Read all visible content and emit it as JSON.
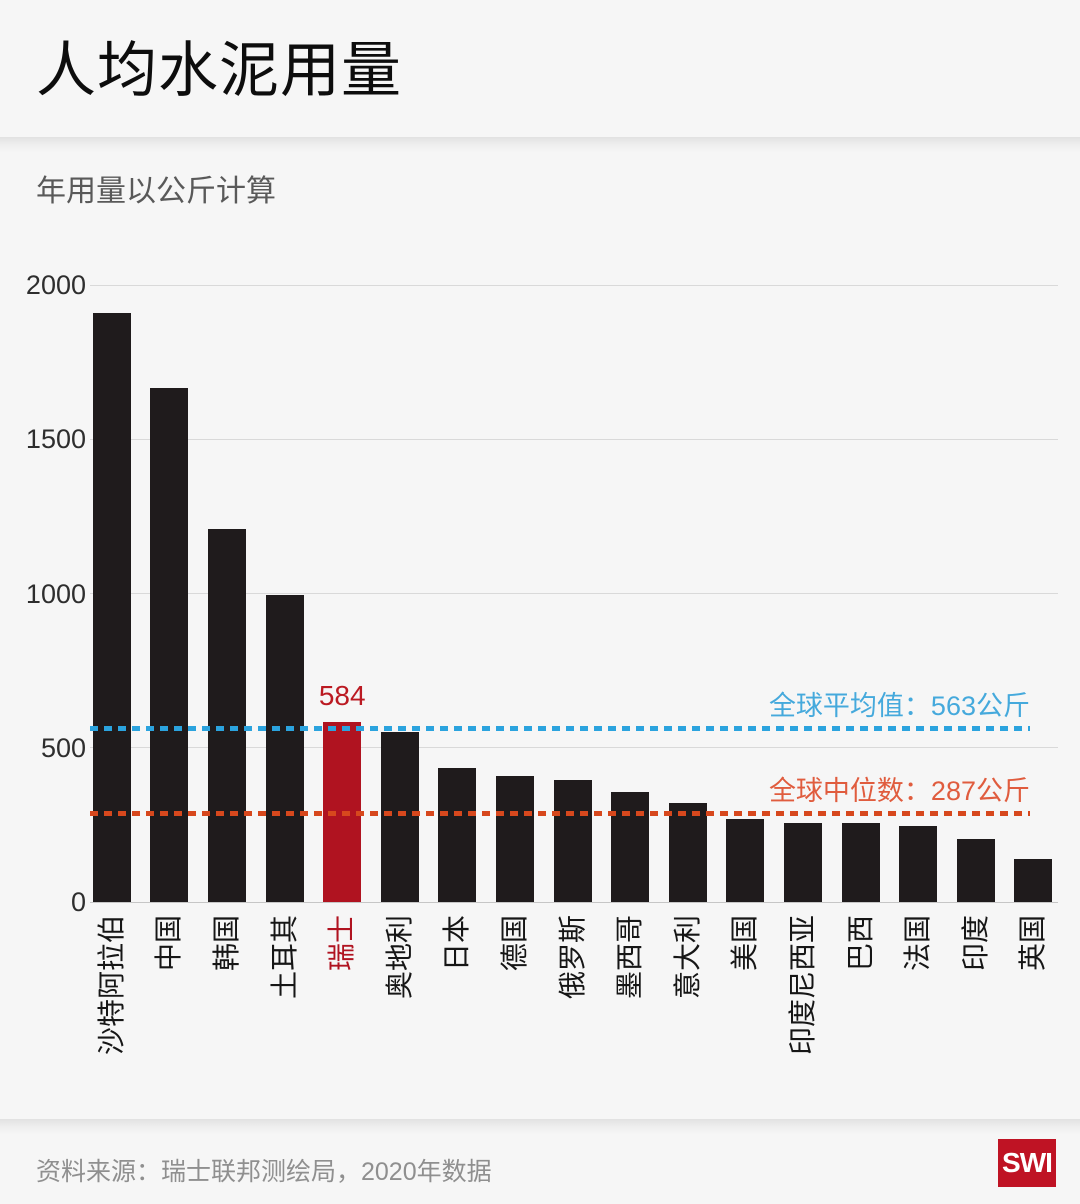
{
  "header": {
    "title": "人均水泥用量",
    "subtitle": "年用量以公斤计算"
  },
  "chart_data": {
    "type": "bar",
    "title": "人均水泥用量",
    "subtitle": "年用量以公斤计算",
    "unit": "公斤",
    "categories": [
      "沙特阿拉伯",
      "中国",
      "韩国",
      "土耳其",
      "瑞士",
      "奥地利",
      "日本",
      "德国",
      "俄罗斯",
      "墨西哥",
      "意大利",
      "美国",
      "印度尼西亚",
      "巴西",
      "法国",
      "印度",
      "英国"
    ],
    "values": [
      1910,
      1665,
      1210,
      995,
      584,
      550,
      435,
      410,
      395,
      355,
      320,
      270,
      257,
      255,
      245,
      205,
      140
    ],
    "highlight_index": 4,
    "highlight_label": "584",
    "ylim": [
      0,
      2000
    ],
    "y_ticks": [
      0,
      500,
      1000,
      1500,
      2000
    ],
    "grid": true,
    "legend_position": "none",
    "reference_lines": [
      {
        "name": "global-average",
        "label": "全球平均值：563公斤",
        "value": 563,
        "line_color": "#2ba3de",
        "label_color": "#45a9dc"
      },
      {
        "name": "global-median",
        "label": "全球中位数：287公斤",
        "value": 287,
        "line_color": "#d7481d",
        "label_color": "#e05c3e"
      }
    ],
    "colors": {
      "bar": "#1f1b1c",
      "highlight_bar": "#b01320",
      "highlight_text": "#bb1a22",
      "axis_text": "#2e2e2e"
    }
  },
  "footer": {
    "source": "资料来源：瑞士联邦测绘局，2020年数据",
    "logo_text": "SWI",
    "logo_color": "#bf1324"
  }
}
